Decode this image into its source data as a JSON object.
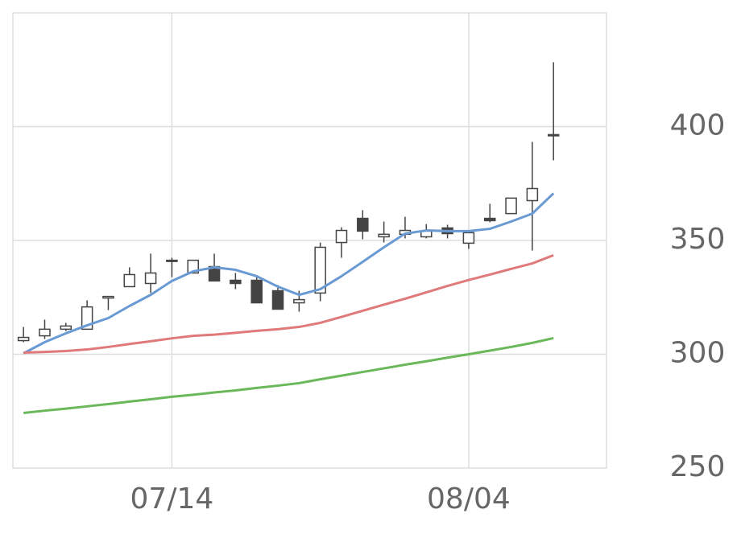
{
  "chart_data": {
    "type": "candlestick",
    "categories": [
      null,
      null,
      null,
      null,
      null,
      null,
      null,
      "07/14",
      null,
      null,
      null,
      null,
      null,
      null,
      null,
      null,
      null,
      null,
      null,
      null,
      null,
      "08/04",
      null,
      null,
      null,
      null
    ],
    "open": [
      306.0,
      308.1,
      311.0,
      311.0,
      324.7,
      329.7,
      331.1,
      341.3,
      335.7,
      338.5,
      332.5,
      332.5,
      327.9,
      322.6,
      326.9,
      349.1,
      359.7,
      351.6,
      352.7,
      351.6,
      355.5,
      348.8,
      359.7,
      361.8,
      367.5,
      396.5
    ],
    "high": [
      312.0,
      315.2,
      313.8,
      323.7,
      325.4,
      338.2,
      344.2,
      342.4,
      341.3,
      344.2,
      335.7,
      334.6,
      330.4,
      327.9,
      349.1,
      355.8,
      363.3,
      358.3,
      360.4,
      357.2,
      356.9,
      353.4,
      366.1,
      368.6,
      393.3,
      428.3
    ],
    "low": [
      305.3,
      306.7,
      310.2,
      311.0,
      319.4,
      329.7,
      326.9,
      333.9,
      335.7,
      332.2,
      328.6,
      322.6,
      319.8,
      318.7,
      323.3,
      342.4,
      350.5,
      349.1,
      350.9,
      350.9,
      350.9,
      346.3,
      358.0,
      361.8,
      345.6,
      385.2
    ],
    "close": [
      307.4,
      311.0,
      312.4,
      320.8,
      325.4,
      335.0,
      335.7,
      341.0,
      341.3,
      332.2,
      331.1,
      322.6,
      319.8,
      324.0,
      347.0,
      354.4,
      354.1,
      352.7,
      354.4,
      354.1,
      353.0,
      353.4,
      358.7,
      368.6,
      372.8,
      396.5
    ],
    "up_color": "#ffffff",
    "down_color": "#444444",
    "wick_color": "#444444",
    "series": [
      {
        "color": "#6a9ad4",
        "values": [
          300.4,
          305.3,
          309.2,
          312.7,
          315.9,
          321.2,
          326.1,
          332.2,
          336.4,
          338.2,
          337.1,
          334.3,
          329.7,
          326.1,
          328.6,
          334.3,
          340.6,
          347.0,
          353.0,
          354.4,
          354.1,
          354.1,
          355.1,
          358.3,
          361.8,
          370.7
        ]
      },
      {
        "color": "#e07a7a",
        "values": [
          300.7,
          301.0,
          301.4,
          302.1,
          303.2,
          304.5,
          305.7,
          307.0,
          308.1,
          308.6,
          309.4,
          310.3,
          311.0,
          312.0,
          313.8,
          316.4,
          319.1,
          321.8,
          324.4,
          327.2,
          330.0,
          332.6,
          335.0,
          337.5,
          339.9,
          343.5
        ]
      },
      {
        "color": "#6ab85a",
        "values": [
          274.2,
          275.2,
          276.1,
          277.1,
          278.1,
          279.2,
          280.2,
          281.3,
          282.2,
          283.2,
          284.1,
          285.2,
          286.2,
          287.3,
          289.0,
          290.6,
          292.2,
          293.8,
          295.4,
          296.9,
          298.5,
          300.0,
          301.6,
          303.2,
          305.0,
          307.1
        ]
      }
    ],
    "ylim": [
      250,
      450
    ],
    "yticks": [
      250,
      300,
      350,
      400
    ],
    "grid": true
  }
}
